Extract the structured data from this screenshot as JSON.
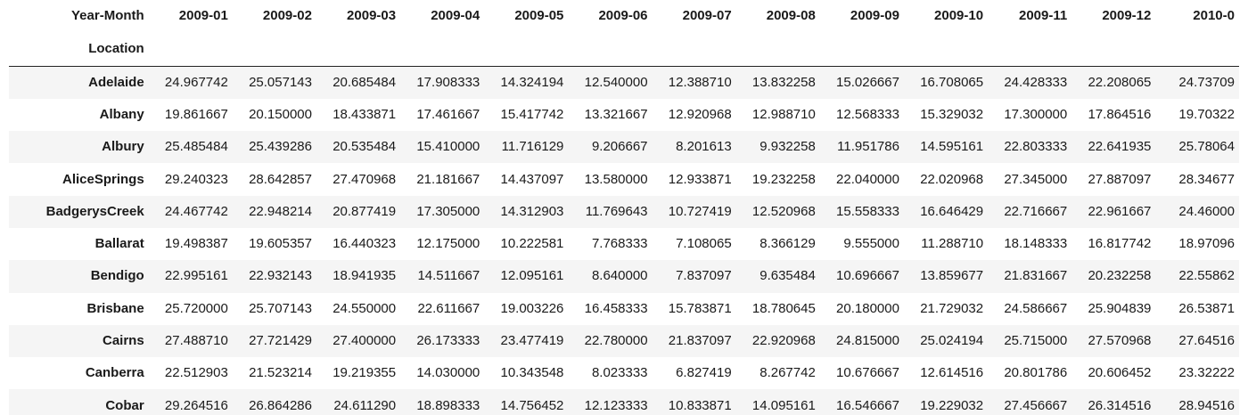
{
  "table": {
    "columns_name": "Year-Month",
    "index_name": "Location",
    "columns": [
      "2009-01",
      "2009-02",
      "2009-03",
      "2009-04",
      "2009-05",
      "2009-06",
      "2009-07",
      "2009-08",
      "2009-09",
      "2009-10",
      "2009-11",
      "2009-12",
      "2010-0"
    ],
    "rows": [
      {
        "label": "Adelaide",
        "values": [
          "24.967742",
          "25.057143",
          "20.685484",
          "17.908333",
          "14.324194",
          "12.540000",
          "12.388710",
          "13.832258",
          "15.026667",
          "16.708065",
          "24.428333",
          "22.208065",
          "24.73709"
        ]
      },
      {
        "label": "Albany",
        "values": [
          "19.861667",
          "20.150000",
          "18.433871",
          "17.461667",
          "15.417742",
          "13.321667",
          "12.920968",
          "12.988710",
          "12.568333",
          "15.329032",
          "17.300000",
          "17.864516",
          "19.70322"
        ]
      },
      {
        "label": "Albury",
        "values": [
          "25.485484",
          "25.439286",
          "20.535484",
          "15.410000",
          "11.716129",
          "9.206667",
          "8.201613",
          "9.932258",
          "11.951786",
          "14.595161",
          "22.803333",
          "22.641935",
          "25.78064"
        ]
      },
      {
        "label": "AliceSprings",
        "values": [
          "29.240323",
          "28.642857",
          "27.470968",
          "21.181667",
          "14.437097",
          "13.580000",
          "12.933871",
          "19.232258",
          "22.040000",
          "22.020968",
          "27.345000",
          "27.887097",
          "28.34677"
        ]
      },
      {
        "label": "BadgerysCreek",
        "values": [
          "24.467742",
          "22.948214",
          "20.877419",
          "17.305000",
          "14.312903",
          "11.769643",
          "10.727419",
          "12.520968",
          "15.558333",
          "16.646429",
          "22.716667",
          "22.961667",
          "24.46000"
        ]
      },
      {
        "label": "Ballarat",
        "values": [
          "19.498387",
          "19.605357",
          "16.440323",
          "12.175000",
          "10.222581",
          "7.768333",
          "7.108065",
          "8.366129",
          "9.555000",
          "11.288710",
          "18.148333",
          "16.817742",
          "18.97096"
        ]
      },
      {
        "label": "Bendigo",
        "values": [
          "22.995161",
          "22.932143",
          "18.941935",
          "14.511667",
          "12.095161",
          "8.640000",
          "7.837097",
          "9.635484",
          "10.696667",
          "13.859677",
          "21.831667",
          "20.232258",
          "22.55862"
        ]
      },
      {
        "label": "Brisbane",
        "values": [
          "25.720000",
          "25.707143",
          "24.550000",
          "22.611667",
          "19.003226",
          "16.458333",
          "15.783871",
          "18.780645",
          "20.180000",
          "21.729032",
          "24.586667",
          "25.904839",
          "26.53871"
        ]
      },
      {
        "label": "Cairns",
        "values": [
          "27.488710",
          "27.721429",
          "27.400000",
          "26.173333",
          "23.477419",
          "22.780000",
          "21.837097",
          "22.920968",
          "24.815000",
          "25.024194",
          "25.715000",
          "27.570968",
          "27.64516"
        ]
      },
      {
        "label": "Canberra",
        "values": [
          "22.512903",
          "21.523214",
          "19.219355",
          "14.030000",
          "10.343548",
          "8.023333",
          "6.827419",
          "8.267742",
          "10.676667",
          "12.614516",
          "20.801786",
          "20.606452",
          "23.32222"
        ]
      },
      {
        "label": "Cobar",
        "values": [
          "29.264516",
          "26.864286",
          "24.611290",
          "18.898333",
          "14.756452",
          "12.123333",
          "10.833871",
          "14.095161",
          "16.546667",
          "19.229032",
          "27.456667",
          "26.314516",
          "28.94516"
        ]
      }
    ]
  }
}
